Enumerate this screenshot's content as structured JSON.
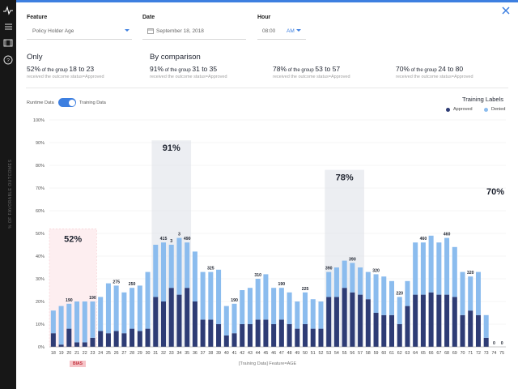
{
  "filters": {
    "feature": {
      "label": "Feature",
      "value": "Policy Holder Age"
    },
    "date": {
      "label": "Date",
      "value": "September 18, 2018"
    },
    "hour": {
      "label": "Hour",
      "value": "08:00",
      "ampm": "AM"
    }
  },
  "summary": {
    "only": {
      "heading": "Only",
      "pct": "52%",
      "mid": " of the group ",
      "range": "18 to 23",
      "sub": "received the outcome status=Approved"
    },
    "comparison_heading": "By comparison",
    "items": [
      {
        "pct": "91%",
        "mid": " of the group ",
        "range": "31 to 35",
        "sub": "received the outcome status=Approved"
      },
      {
        "pct": "78%",
        "mid": " of the group ",
        "range": "53 to 57",
        "sub": "received the outcome status=Approved"
      },
      {
        "pct": "70%",
        "mid": " of the group ",
        "range": "24 to 80",
        "sub": "received the outcome status=Approved"
      }
    ]
  },
  "toggle": {
    "left": "Runtime Data",
    "right": "Training Data",
    "on": true
  },
  "legend": {
    "title": "Training Labels",
    "approved": "Approved",
    "denied": "Denied"
  },
  "colors": {
    "approved": "#2e3c75",
    "denied": "#8bbcee",
    "accent": "#3d7fe0",
    "bias_bg": "#f6c4c8",
    "bias_text": "#c2313d"
  },
  "icons": [
    "pulse-icon",
    "list-icon",
    "film-icon",
    "help-icon",
    "close-icon",
    "calendar-icon",
    "chevron-down-icon"
  ],
  "chart_data": {
    "type": "bar",
    "stacked": true,
    "ylabel": "% OF FAVORABLE OUTCOMES",
    "xlabel": "[Training Data] Feature=AGE",
    "ylim": [
      0,
      100
    ],
    "yticks": [
      "0%",
      "10%",
      "20%",
      "30%",
      "40%",
      "50%",
      "60%",
      "70%",
      "80%",
      "90%",
      "100%"
    ],
    "categories": [
      "18",
      "19",
      "20",
      "21",
      "22",
      "23",
      "24",
      "25",
      "26",
      "27",
      "28",
      "29",
      "30",
      "31",
      "32",
      "33",
      "34",
      "35",
      "36",
      "37",
      "38",
      "39",
      "40",
      "41",
      "42",
      "43",
      "44",
      "45",
      "46",
      "47",
      "48",
      "49",
      "50",
      "51",
      "52",
      "53",
      "54",
      "55",
      "56",
      "57",
      "58",
      "59",
      "60",
      "61",
      "62",
      "63",
      "64",
      "65",
      "66",
      "67",
      "68",
      "69",
      "70",
      "71",
      "72",
      "73",
      "74",
      "75"
    ],
    "series": [
      {
        "name": "Approved",
        "values": [
          6,
          1,
          8,
          2,
          2,
          4,
          7,
          6,
          7,
          6,
          8,
          7,
          8,
          22,
          20,
          26,
          23,
          26,
          20,
          12,
          12,
          10,
          5,
          6,
          10,
          10,
          12,
          12,
          10,
          12,
          10,
          8,
          10,
          8,
          8,
          22,
          22,
          26,
          24,
          23,
          21,
          15,
          14,
          14,
          10,
          18,
          23,
          23,
          24,
          23,
          23,
          22,
          14,
          16,
          14,
          4,
          0,
          0
        ]
      },
      {
        "name": "Denied",
        "values": [
          10,
          17,
          11,
          18,
          18,
          16,
          15,
          22,
          20,
          18,
          18,
          20,
          25,
          23,
          26,
          19,
          25,
          20,
          22,
          21,
          21,
          24,
          13,
          13,
          15,
          16,
          18,
          20,
          16,
          14,
          14,
          12,
          14,
          13,
          12,
          11,
          13,
          12,
          13,
          12,
          12,
          17,
          17,
          15,
          12,
          11,
          23,
          23,
          25,
          23,
          25,
          22,
          19,
          15,
          19,
          10,
          0,
          0
        ]
      }
    ],
    "data_labels": [
      {
        "x": "20",
        "text": "190"
      },
      {
        "x": "23",
        "text": "190"
      },
      {
        "x": "26",
        "text": "275"
      },
      {
        "x": "28",
        "text": "250"
      },
      {
        "x": "32",
        "text": "415"
      },
      {
        "x": "33",
        "text": "3"
      },
      {
        "x": "34",
        "text": "3"
      },
      {
        "x": "35",
        "text": "490"
      },
      {
        "x": "38",
        "text": "325"
      },
      {
        "x": "41",
        "text": "190"
      },
      {
        "x": "44",
        "text": "310"
      },
      {
        "x": "47",
        "text": "190"
      },
      {
        "x": "50",
        "text": "225"
      },
      {
        "x": "53",
        "text": "390"
      },
      {
        "x": "56",
        "text": "390"
      },
      {
        "x": "59",
        "text": "320"
      },
      {
        "x": "62",
        "text": "220"
      },
      {
        "x": "65",
        "text": "460"
      },
      {
        "x": "68",
        "text": "460"
      },
      {
        "x": "71",
        "text": "320"
      },
      {
        "x": "74",
        "text": "0"
      },
      {
        "x": "75",
        "text": "0"
      }
    ],
    "group_overlays": [
      {
        "text": "52%",
        "from": "18",
        "to": "23",
        "style": "bias"
      },
      {
        "text": "91%",
        "from": "31",
        "to": "35",
        "style": "group"
      },
      {
        "text": "78%",
        "from": "53",
        "to": "57",
        "style": "group"
      },
      {
        "text": "70%",
        "from": "74",
        "to": "75",
        "style": "text-only"
      }
    ],
    "annotations": [
      {
        "text": "BIAS",
        "x": "20"
      }
    ]
  }
}
